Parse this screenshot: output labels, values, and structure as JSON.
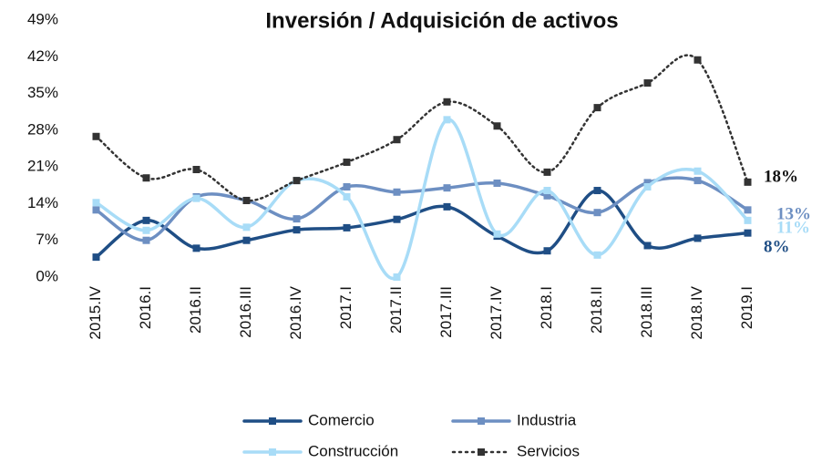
{
  "chart_data": {
    "type": "line",
    "title": "Inversión / Adquisición de activos",
    "categories": [
      "2015.IV",
      "2016.I",
      "2016.II",
      "2016.III",
      "2016.IV",
      "2017.I",
      "2017.II",
      "2017.III",
      "2017.IV",
      "2018.I",
      "2018.II",
      "2018.III",
      "2018.IV",
      "2019.I"
    ],
    "ylim": [
      0,
      49
    ],
    "yticks": [
      {
        "value": 0,
        "label": "0%"
      },
      {
        "value": 7,
        "label": "7%"
      },
      {
        "value": 14,
        "label": "14%"
      },
      {
        "value": 21,
        "label": "21%"
      },
      {
        "value": 28,
        "label": "28%"
      },
      {
        "value": 35,
        "label": "35%"
      },
      {
        "value": 42,
        "label": "42%"
      },
      {
        "value": 49,
        "label": "49%"
      }
    ],
    "grid": false,
    "legend": "bottom",
    "series": [
      {
        "name": "Comercio",
        "color": "#1f4e85",
        "style": "solid",
        "values": [
          3.8,
          10.8,
          5.5,
          7,
          9,
          9.4,
          11,
          13.4,
          7.8,
          5,
          16.5,
          6,
          7.4,
          8.4
        ],
        "value_labels": [
          null,
          null,
          null,
          null,
          null,
          null,
          null,
          null,
          null,
          null,
          null,
          null,
          null,
          "8%"
        ]
      },
      {
        "name": "Industria",
        "color": "#6d8fc2",
        "style": "solid",
        "values": [
          12.8,
          7,
          15.3,
          14.6,
          11.1,
          17.2,
          16.2,
          17,
          17.9,
          15.5,
          12.3,
          18,
          18.4,
          12.8
        ],
        "value_labels": [
          null,
          null,
          null,
          null,
          null,
          null,
          null,
          null,
          null,
          null,
          null,
          null,
          null,
          "13%"
        ]
      },
      {
        "name": "Construcción",
        "color": "#a8dcf7",
        "style": "solid",
        "values": [
          14.2,
          8.9,
          15,
          9.5,
          18.4,
          15.3,
          0,
          30,
          8.2,
          16.5,
          4.2,
          17.2,
          20.2,
          10.8
        ],
        "value_labels": [
          null,
          null,
          null,
          null,
          null,
          null,
          null,
          null,
          null,
          null,
          null,
          null,
          null,
          "11%"
        ]
      },
      {
        "name": "Servicios",
        "color": "#333333",
        "style": "dotted",
        "values": [
          26.8,
          18.9,
          20.5,
          14.6,
          18.4,
          21.9,
          26.2,
          33.4,
          28.8,
          20,
          32.3,
          37,
          41.4,
          18.1
        ],
        "value_labels": [
          null,
          null,
          null,
          null,
          null,
          null,
          null,
          null,
          null,
          null,
          null,
          null,
          null,
          "18%"
        ]
      }
    ]
  }
}
